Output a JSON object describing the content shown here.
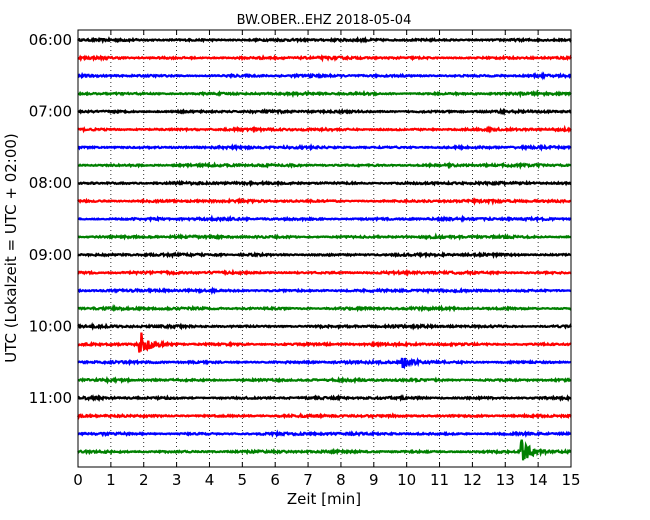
{
  "chart_data": {
    "type": "line",
    "title": "BW.OBER..EHZ 2018-05-04",
    "xlabel": "Zeit  [min]",
    "ylabel": "UTC (Lokalzeit = UTC + 02:00)",
    "xlim": [
      0,
      15
    ],
    "x_ticks": [
      "0",
      "1",
      "2",
      "3",
      "4",
      "5",
      "6",
      "7",
      "8",
      "9",
      "10",
      "11",
      "12",
      "13",
      "14",
      "15"
    ],
    "y_ticks": [
      "06:00",
      "07:00",
      "08:00",
      "09:00",
      "10:00",
      "11:00"
    ],
    "trace_start_times": [
      "06:00",
      "06:15",
      "06:30",
      "06:45",
      "07:00",
      "07:15",
      "07:30",
      "07:45",
      "08:00",
      "08:15",
      "08:30",
      "08:45",
      "09:00",
      "09:15",
      "09:30",
      "09:45",
      "10:00",
      "10:15",
      "10:30",
      "10:45",
      "11:00",
      "11:15",
      "11:30",
      "11:45"
    ],
    "colors": [
      "#000000",
      "#ff0000",
      "#0000ff",
      "#008000"
    ],
    "events": [
      {
        "trace": 17,
        "minute": 1.9,
        "amplitude": 1.8
      },
      {
        "trace": 18,
        "minute": 9.9,
        "amplitude": 0.8
      },
      {
        "trace": 23,
        "minute": 13.5,
        "amplitude": 1.6
      }
    ],
    "grid_x": true
  }
}
